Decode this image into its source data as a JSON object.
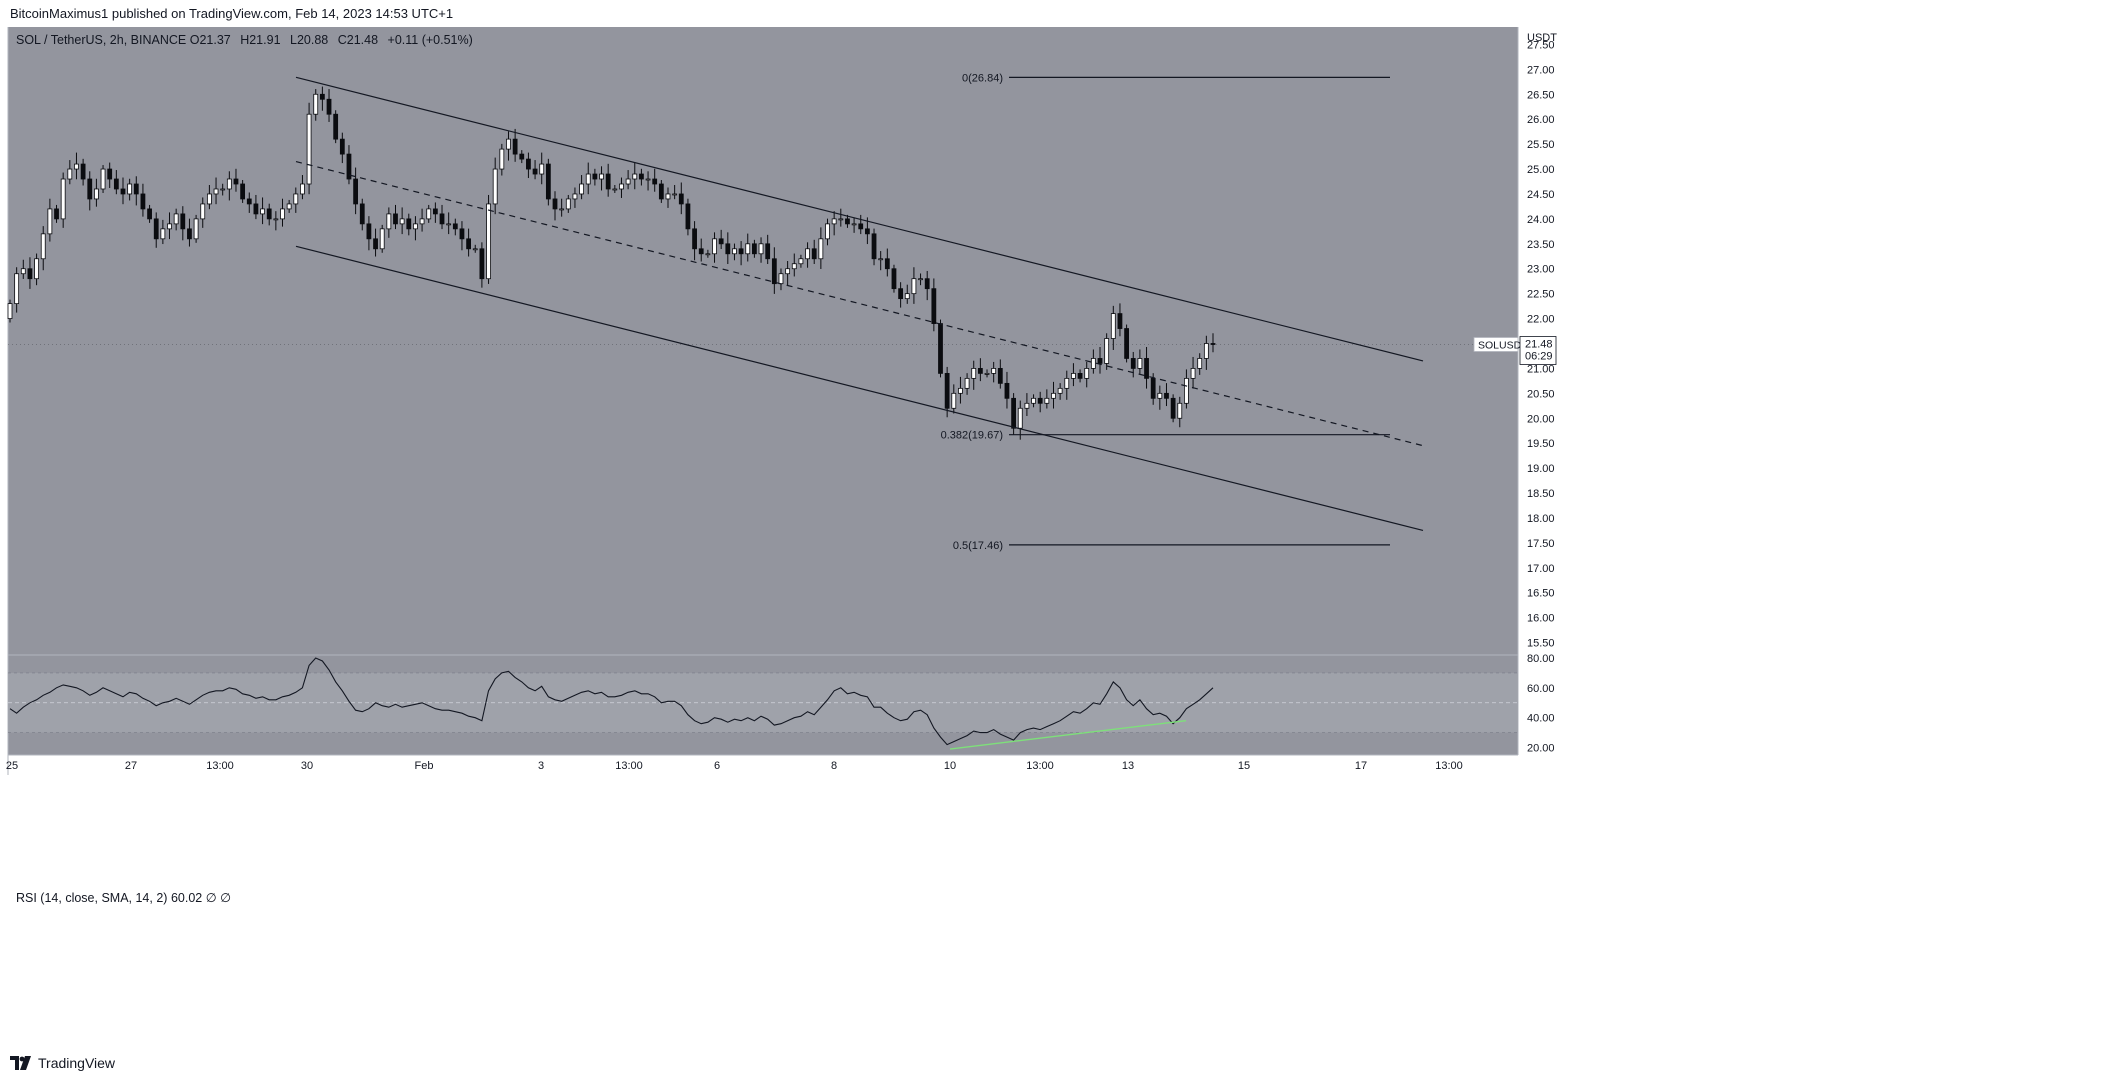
{
  "header": {
    "publisher_text": "BitcoinMaximus1 published on TradingView.com, Feb 14, 2023 14:53 UTC+1"
  },
  "legend": {
    "symbol_text": "SOL / TetherUS, 2h, BINANCE",
    "o_label": "O",
    "o_value": "21.37",
    "h_label": "H",
    "h_value": "21.91",
    "l_label": "L",
    "l_value": "20.88",
    "c_label": "C",
    "c_value": "21.48",
    "change": "+0.11 (+0.51%)"
  },
  "rsi_legend": {
    "text": "RSI (14, close, SMA, 14, 2)",
    "value": "60.02",
    "extra": "∅ ∅"
  },
  "price_label": {
    "symbol": "SOLUSDT",
    "price": "21.48",
    "countdown": "06:29"
  },
  "footer": {
    "brand": "TradingView"
  },
  "colors": {
    "background": "#93959e",
    "rsi_band": "#a3a5ad",
    "candle_up": "#ffffff",
    "candle_down": "#0b0c10",
    "line": "#131722",
    "divergence": "#7ee07a"
  },
  "chart_data": {
    "type": "candlestick",
    "y_axis_unit": "USDT",
    "ylim": [
      15.25,
      27.85
    ],
    "y_ticks": [
      "27.50",
      "27.00",
      "26.50",
      "26.00",
      "25.50",
      "25.00",
      "24.50",
      "24.00",
      "23.50",
      "23.00",
      "22.50",
      "22.00",
      "21.50",
      "21.00",
      "20.50",
      "20.00",
      "19.50",
      "19.00",
      "18.50",
      "18.00",
      "17.50",
      "17.00",
      "16.50",
      "16.00",
      "15.50"
    ],
    "x_ticks": [
      "25",
      "27",
      "13:00",
      "30",
      "Feb",
      "3",
      "13:00",
      "6",
      "8",
      "10",
      "13:00",
      "13",
      "15",
      "17",
      "13:00"
    ],
    "closes": [
      22.3,
      22.9,
      23.0,
      22.8,
      23.2,
      23.7,
      24.2,
      24.0,
      24.8,
      25.0,
      25.1,
      24.8,
      24.4,
      24.6,
      25.0,
      24.8,
      24.6,
      24.5,
      24.7,
      24.5,
      24.2,
      24.0,
      23.6,
      23.8,
      23.9,
      24.1,
      23.8,
      23.6,
      24.0,
      24.3,
      24.5,
      24.6,
      24.6,
      24.8,
      24.7,
      24.4,
      24.3,
      24.1,
      24.2,
      24.0,
      24.0,
      24.2,
      24.3,
      24.5,
      24.7,
      26.1,
      26.5,
      26.4,
      26.1,
      25.6,
      25.3,
      24.8,
      24.3,
      23.9,
      23.6,
      23.4,
      23.8,
      24.1,
      23.9,
      24.0,
      23.8,
      23.9,
      24.0,
      24.2,
      24.1,
      23.9,
      23.9,
      23.8,
      23.6,
      23.4,
      23.4,
      22.8,
      24.3,
      25.0,
      25.4,
      25.6,
      25.3,
      25.2,
      25.0,
      24.9,
      25.1,
      24.4,
      24.2,
      24.2,
      24.4,
      24.5,
      24.7,
      24.9,
      24.8,
      24.9,
      24.6,
      24.6,
      24.7,
      24.8,
      24.9,
      24.8,
      24.8,
      24.7,
      24.4,
      24.5,
      24.5,
      24.3,
      23.8,
      23.4,
      23.3,
      23.3,
      23.6,
      23.5,
      23.3,
      23.4,
      23.3,
      23.5,
      23.3,
      23.5,
      23.2,
      22.7,
      22.9,
      23.0,
      23.1,
      23.2,
      23.4,
      23.2,
      23.6,
      23.9,
      24.0,
      24.0,
      23.9,
      23.9,
      23.8,
      23.7,
      23.2,
      23.2,
      23.0,
      22.6,
      22.4,
      22.5,
      22.8,
      22.8,
      22.6,
      21.9,
      20.9,
      20.2,
      20.5,
      20.6,
      20.8,
      21.0,
      20.9,
      20.9,
      21.0,
      20.7,
      20.4,
      19.8,
      20.2,
      20.3,
      20.4,
      20.3,
      20.4,
      20.5,
      20.6,
      20.8,
      20.9,
      20.8,
      21.0,
      21.2,
      21.1,
      21.6,
      22.1,
      21.8,
      21.2,
      21.0,
      21.2,
      20.8,
      20.4,
      20.5,
      20.4,
      20.0,
      20.3,
      20.8,
      21.0,
      21.2,
      21.5,
      21.48
    ],
    "channel_upper": [
      {
        "x": "Jan 29 13:00",
        "y": 26.84
      },
      {
        "x": "Feb 17 20:00",
        "y": 21.15
      }
    ],
    "channel_middle": [
      {
        "x": "Jan 29 13:00",
        "y": 25.15
      },
      {
        "x": "Feb 17 20:00",
        "y": 19.45
      }
    ],
    "channel_lower": [
      {
        "x": "Jan 29 13:00",
        "y": 23.45
      },
      {
        "x": "Feb 17 20:00",
        "y": 17.75
      }
    ],
    "fib_levels": [
      {
        "label": "0(26.84)",
        "value": 26.84
      },
      {
        "label": "0.382(19.67)",
        "value": 19.67
      },
      {
        "label": "0.5(17.46)",
        "value": 17.46
      }
    ],
    "rsi": {
      "ylim": [
        15,
        82
      ],
      "y_ticks": [
        "80.00",
        "60.00",
        "40.00",
        "20.00"
      ],
      "band": [
        30,
        70
      ],
      "midline": 50,
      "values": [
        46,
        43,
        47,
        50,
        52,
        55,
        57,
        60,
        62,
        61,
        60,
        58,
        55,
        57,
        60,
        58,
        56,
        54,
        57,
        56,
        53,
        51,
        48,
        50,
        51,
        53,
        51,
        49,
        52,
        55,
        57,
        58,
        58,
        60,
        59,
        56,
        55,
        53,
        54,
        52,
        52,
        54,
        55,
        57,
        60,
        75,
        80,
        78,
        72,
        64,
        58,
        51,
        45,
        44,
        46,
        50,
        48,
        47,
        49,
        47,
        48,
        49,
        50,
        48,
        46,
        45,
        45,
        44,
        43,
        41,
        40,
        38,
        58,
        66,
        70,
        71,
        67,
        64,
        60,
        58,
        61,
        54,
        52,
        51,
        53,
        55,
        57,
        58,
        56,
        57,
        54,
        54,
        55,
        57,
        58,
        56,
        56,
        54,
        50,
        51,
        51,
        48,
        42,
        38,
        36,
        37,
        40,
        39,
        37,
        39,
        38,
        40,
        38,
        41,
        39,
        35,
        36,
        38,
        40,
        41,
        44,
        42,
        47,
        52,
        58,
        60,
        56,
        57,
        55,
        54,
        47,
        47,
        43,
        40,
        38,
        39,
        44,
        45,
        42,
        33,
        27,
        22,
        24,
        26,
        28,
        31,
        30,
        30,
        32,
        29,
        27,
        25,
        30,
        32,
        33,
        32,
        34,
        36,
        38,
        41,
        44,
        43,
        46,
        50,
        49,
        56,
        64,
        60,
        52,
        48,
        52,
        46,
        42,
        43,
        41,
        36,
        40,
        46,
        49,
        52,
        56,
        60
      ],
      "divergence": [
        {
          "x": "Feb 10 00:00",
          "y": 19
        },
        {
          "x": "Feb 14 06:00",
          "y": 38
        }
      ]
    }
  }
}
